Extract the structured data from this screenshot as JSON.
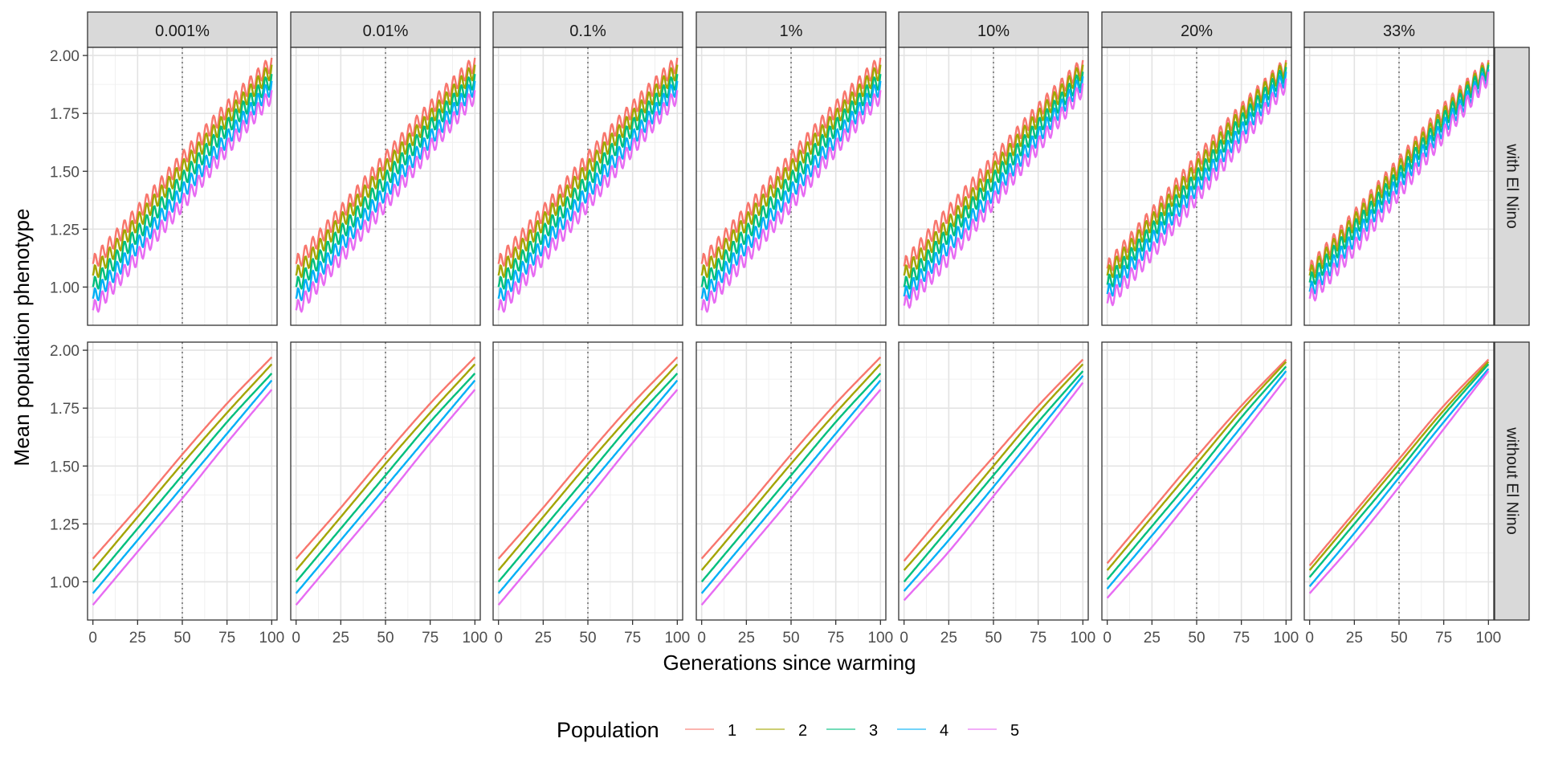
{
  "chart_data": {
    "type": "line",
    "xlabel": "Generations since warming",
    "ylabel": "Mean population phenotype",
    "xlim": [
      -3,
      103
    ],
    "ylim": [
      0.835,
      2.035
    ],
    "x_ticks": [
      "0",
      "25",
      "50",
      "75",
      "100"
    ],
    "x_tick_values": [
      0,
      25,
      50,
      75,
      100
    ],
    "y_ticks": [
      "1.00",
      "1.25",
      "1.50",
      "1.75",
      "2.00"
    ],
    "y_tick_values": [
      1.0,
      1.25,
      1.5,
      1.75,
      2.0
    ],
    "reference_line_x": 50,
    "grid": true,
    "column_facets": [
      "0.001%",
      "0.01%",
      "0.1%",
      "1%",
      "10%",
      "20%",
      "33%"
    ],
    "row_facets": [
      "with El Nino",
      "without El Nino"
    ],
    "legend": {
      "title": "Population",
      "placement": "bottom",
      "entries": [
        "1",
        "2",
        "3",
        "4",
        "5"
      ]
    },
    "series_colors": [
      "#F8766D",
      "#A3A500",
      "#00BF7D",
      "#00B0F6",
      "#E76BF3"
    ],
    "x": [
      0,
      25,
      50,
      75,
      100
    ],
    "panels": [
      {
        "column": "0.001%",
        "row": "with El Nino",
        "series": [
          {
            "name": "1",
            "values": [
              1.1,
              1.32,
              1.55,
              1.77,
              1.97
            ]
          },
          {
            "name": "2",
            "values": [
              1.05,
              1.28,
              1.51,
              1.73,
              1.94
            ]
          },
          {
            "name": "3",
            "values": [
              1.0,
              1.23,
              1.46,
              1.69,
              1.9
            ]
          },
          {
            "name": "4",
            "values": [
              0.95,
              1.18,
              1.41,
              1.64,
              1.87
            ]
          },
          {
            "name": "5",
            "values": [
              0.9,
              1.13,
              1.36,
              1.6,
              1.83
            ]
          }
        ]
      },
      {
        "column": "0.01%",
        "row": "with El Nino",
        "series": [
          {
            "name": "1",
            "values": [
              1.1,
              1.32,
              1.55,
              1.77,
              1.97
            ]
          },
          {
            "name": "2",
            "values": [
              1.05,
              1.28,
              1.51,
              1.73,
              1.94
            ]
          },
          {
            "name": "3",
            "values": [
              1.0,
              1.23,
              1.46,
              1.69,
              1.9
            ]
          },
          {
            "name": "4",
            "values": [
              0.95,
              1.18,
              1.41,
              1.64,
              1.87
            ]
          },
          {
            "name": "5",
            "values": [
              0.9,
              1.13,
              1.36,
              1.6,
              1.83
            ]
          }
        ]
      },
      {
        "column": "0.1%",
        "row": "with El Nino",
        "series": [
          {
            "name": "1",
            "values": [
              1.1,
              1.32,
              1.55,
              1.77,
              1.97
            ]
          },
          {
            "name": "2",
            "values": [
              1.05,
              1.28,
              1.51,
              1.73,
              1.94
            ]
          },
          {
            "name": "3",
            "values": [
              1.0,
              1.23,
              1.46,
              1.69,
              1.9
            ]
          },
          {
            "name": "4",
            "values": [
              0.95,
              1.18,
              1.41,
              1.64,
              1.87
            ]
          },
          {
            "name": "5",
            "values": [
              0.9,
              1.13,
              1.36,
              1.6,
              1.83
            ]
          }
        ]
      },
      {
        "column": "1%",
        "row": "with El Nino",
        "series": [
          {
            "name": "1",
            "values": [
              1.1,
              1.32,
              1.55,
              1.77,
              1.97
            ]
          },
          {
            "name": "2",
            "values": [
              1.05,
              1.28,
              1.51,
              1.73,
              1.94
            ]
          },
          {
            "name": "3",
            "values": [
              1.0,
              1.23,
              1.46,
              1.69,
              1.9
            ]
          },
          {
            "name": "4",
            "values": [
              0.95,
              1.18,
              1.41,
              1.64,
              1.87
            ]
          },
          {
            "name": "5",
            "values": [
              0.9,
              1.13,
              1.36,
              1.6,
              1.83
            ]
          }
        ]
      },
      {
        "column": "10%",
        "row": "with El Nino",
        "series": [
          {
            "name": "1",
            "values": [
              1.09,
              1.32,
              1.54,
              1.76,
              1.96
            ]
          },
          {
            "name": "2",
            "values": [
              1.05,
              1.27,
              1.5,
              1.73,
              1.94
            ]
          },
          {
            "name": "3",
            "values": [
              1.0,
              1.23,
              1.46,
              1.69,
              1.91
            ]
          },
          {
            "name": "4",
            "values": [
              0.96,
              1.18,
              1.41,
              1.65,
              1.89
            ]
          },
          {
            "name": "5",
            "values": [
              0.92,
              1.13,
              1.37,
              1.61,
              1.86
            ]
          }
        ]
      },
      {
        "column": "20%",
        "row": "with El Nino",
        "series": [
          {
            "name": "1",
            "values": [
              1.08,
              1.31,
              1.54,
              1.76,
              1.96
            ]
          },
          {
            "name": "2",
            "values": [
              1.05,
              1.28,
              1.51,
              1.74,
              1.95
            ]
          },
          {
            "name": "3",
            "values": [
              1.01,
              1.24,
              1.47,
              1.71,
              1.93
            ]
          },
          {
            "name": "4",
            "values": [
              0.97,
              1.2,
              1.43,
              1.67,
              1.91
            ]
          },
          {
            "name": "5",
            "values": [
              0.93,
              1.15,
              1.39,
              1.63,
              1.88
            ]
          }
        ]
      },
      {
        "column": "33%",
        "row": "with El Nino",
        "series": [
          {
            "name": "1",
            "values": [
              1.07,
              1.3,
              1.53,
              1.76,
              1.96
            ]
          },
          {
            "name": "2",
            "values": [
              1.05,
              1.28,
              1.51,
              1.74,
              1.95
            ]
          },
          {
            "name": "3",
            "values": [
              1.02,
              1.25,
              1.48,
              1.72,
              1.94
            ]
          },
          {
            "name": "4",
            "values": [
              0.98,
              1.21,
              1.45,
              1.69,
              1.92
            ]
          },
          {
            "name": "5",
            "values": [
              0.95,
              1.17,
              1.41,
              1.66,
              1.91
            ]
          }
        ]
      },
      {
        "column": "0.001%",
        "row": "without El Nino",
        "series": [
          {
            "name": "1",
            "values": [
              1.1,
              1.32,
              1.55,
              1.77,
              1.97
            ]
          },
          {
            "name": "2",
            "values": [
              1.05,
              1.28,
              1.51,
              1.73,
              1.94
            ]
          },
          {
            "name": "3",
            "values": [
              1.0,
              1.23,
              1.46,
              1.69,
              1.9
            ]
          },
          {
            "name": "4",
            "values": [
              0.95,
              1.18,
              1.41,
              1.64,
              1.87
            ]
          },
          {
            "name": "5",
            "values": [
              0.9,
              1.13,
              1.36,
              1.6,
              1.83
            ]
          }
        ]
      },
      {
        "column": "0.01%",
        "row": "without El Nino",
        "series": [
          {
            "name": "1",
            "values": [
              1.1,
              1.32,
              1.55,
              1.77,
              1.97
            ]
          },
          {
            "name": "2",
            "values": [
              1.05,
              1.28,
              1.51,
              1.73,
              1.94
            ]
          },
          {
            "name": "3",
            "values": [
              1.0,
              1.23,
              1.46,
              1.69,
              1.9
            ]
          },
          {
            "name": "4",
            "values": [
              0.95,
              1.18,
              1.41,
              1.64,
              1.87
            ]
          },
          {
            "name": "5",
            "values": [
              0.9,
              1.13,
              1.36,
              1.6,
              1.83
            ]
          }
        ]
      },
      {
        "column": "0.1%",
        "row": "without El Nino",
        "series": [
          {
            "name": "1",
            "values": [
              1.1,
              1.32,
              1.55,
              1.77,
              1.97
            ]
          },
          {
            "name": "2",
            "values": [
              1.05,
              1.28,
              1.51,
              1.73,
              1.94
            ]
          },
          {
            "name": "3",
            "values": [
              1.0,
              1.23,
              1.46,
              1.69,
              1.9
            ]
          },
          {
            "name": "4",
            "values": [
              0.95,
              1.18,
              1.41,
              1.64,
              1.87
            ]
          },
          {
            "name": "5",
            "values": [
              0.9,
              1.13,
              1.36,
              1.6,
              1.83
            ]
          }
        ]
      },
      {
        "column": "1%",
        "row": "without El Nino",
        "series": [
          {
            "name": "1",
            "values": [
              1.1,
              1.32,
              1.55,
              1.77,
              1.97
            ]
          },
          {
            "name": "2",
            "values": [
              1.05,
              1.28,
              1.51,
              1.73,
              1.94
            ]
          },
          {
            "name": "3",
            "values": [
              1.0,
              1.23,
              1.46,
              1.69,
              1.9
            ]
          },
          {
            "name": "4",
            "values": [
              0.95,
              1.18,
              1.41,
              1.64,
              1.87
            ]
          },
          {
            "name": "5",
            "values": [
              0.9,
              1.13,
              1.36,
              1.6,
              1.83
            ]
          }
        ]
      },
      {
        "column": "10%",
        "row": "without El Nino",
        "series": [
          {
            "name": "1",
            "values": [
              1.09,
              1.32,
              1.54,
              1.76,
              1.96
            ]
          },
          {
            "name": "2",
            "values": [
              1.05,
              1.27,
              1.5,
              1.73,
              1.94
            ]
          },
          {
            "name": "3",
            "values": [
              1.0,
              1.23,
              1.46,
              1.69,
              1.91
            ]
          },
          {
            "name": "4",
            "values": [
              0.96,
              1.18,
              1.41,
              1.65,
              1.89
            ]
          },
          {
            "name": "5",
            "values": [
              0.92,
              1.13,
              1.37,
              1.61,
              1.86
            ]
          }
        ]
      },
      {
        "column": "20%",
        "row": "without El Nino",
        "series": [
          {
            "name": "1",
            "values": [
              1.08,
              1.31,
              1.54,
              1.76,
              1.96
            ]
          },
          {
            "name": "2",
            "values": [
              1.05,
              1.28,
              1.51,
              1.74,
              1.95
            ]
          },
          {
            "name": "3",
            "values": [
              1.01,
              1.24,
              1.47,
              1.71,
              1.93
            ]
          },
          {
            "name": "4",
            "values": [
              0.97,
              1.2,
              1.43,
              1.67,
              1.91
            ]
          },
          {
            "name": "5",
            "values": [
              0.93,
              1.15,
              1.39,
              1.63,
              1.88
            ]
          }
        ]
      },
      {
        "column": "33%",
        "row": "without El Nino",
        "series": [
          {
            "name": "1",
            "values": [
              1.07,
              1.3,
              1.53,
              1.76,
              1.96
            ]
          },
          {
            "name": "2",
            "values": [
              1.05,
              1.28,
              1.51,
              1.74,
              1.95
            ]
          },
          {
            "name": "3",
            "values": [
              1.02,
              1.25,
              1.48,
              1.72,
              1.94
            ]
          },
          {
            "name": "4",
            "values": [
              0.98,
              1.21,
              1.45,
              1.69,
              1.92
            ]
          },
          {
            "name": "5",
            "values": [
              0.95,
              1.17,
              1.41,
              1.66,
              1.91
            ]
          }
        ]
      }
    ]
  }
}
